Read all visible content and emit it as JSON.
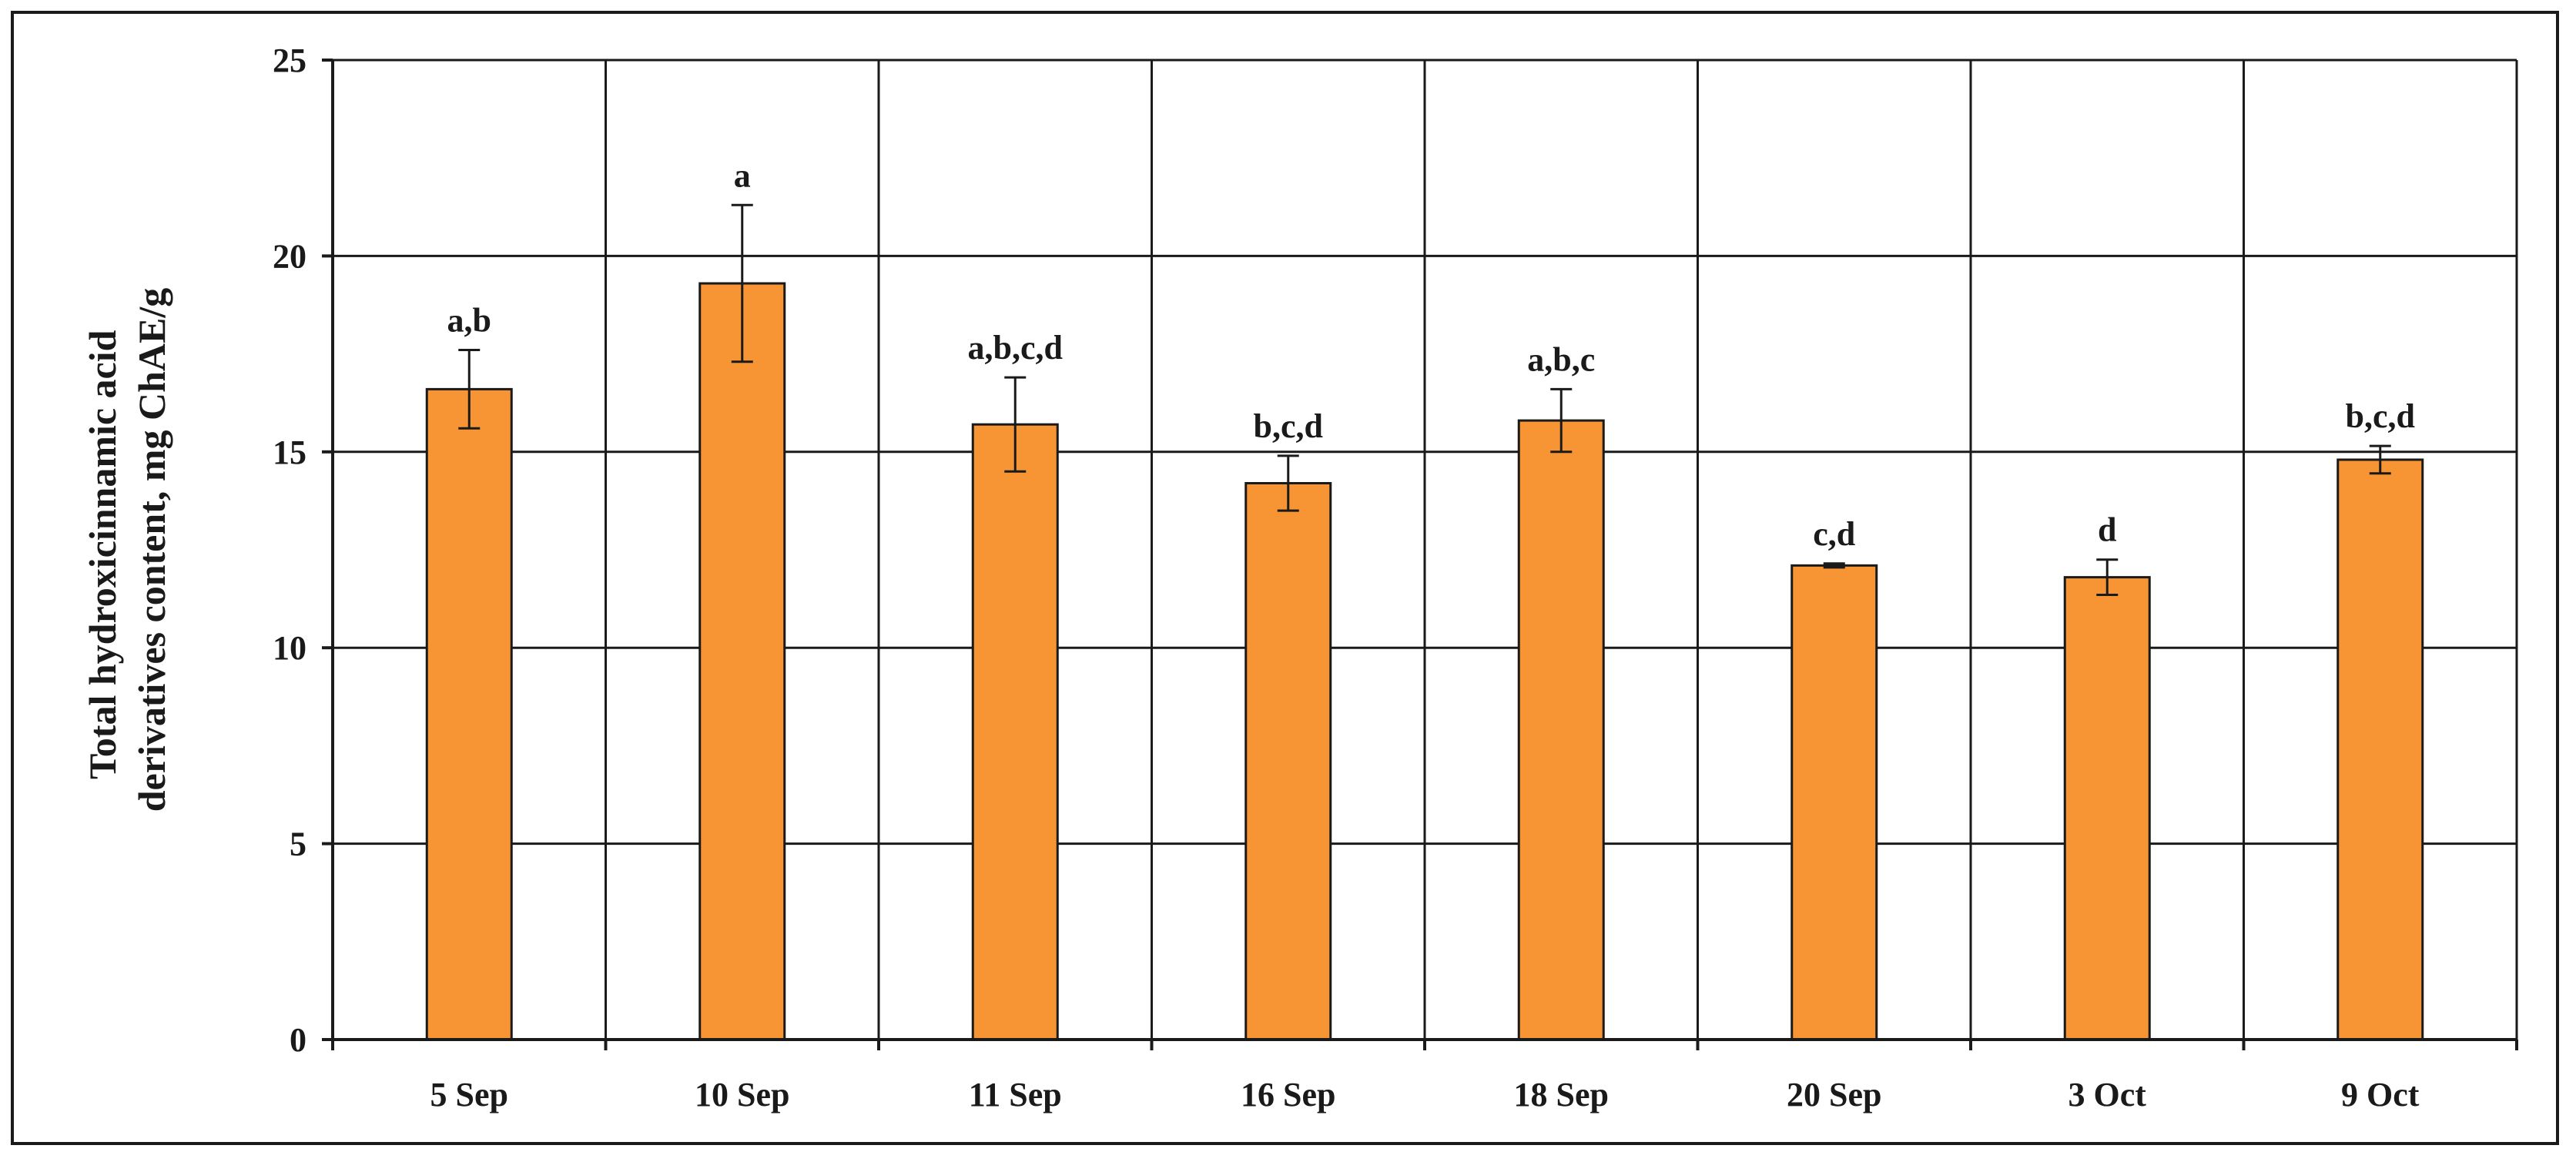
{
  "chart_data": {
    "type": "bar",
    "title": "",
    "xlabel": "",
    "ylabel_lines": [
      "Total hydroxicinnamic acid",
      "derivatives content, mg ChAE/g"
    ],
    "ylim": [
      0,
      25
    ],
    "yticks": [
      0,
      5,
      10,
      15,
      20,
      25
    ],
    "grid": true,
    "legend": "none",
    "categories": [
      "5 Sep",
      "10 Sep",
      "11 Sep",
      "16 Sep",
      "18 Sep",
      "20 Sep",
      "3 Oct",
      "9 Oct"
    ],
    "values": [
      16.6,
      19.3,
      15.7,
      14.2,
      15.8,
      12.1,
      11.8,
      14.8
    ],
    "error": [
      1.0,
      2.0,
      1.2,
      0.7,
      0.8,
      0.05,
      0.45,
      0.35
    ],
    "significance_labels": [
      "a,b",
      "a",
      "a,b,c,d",
      "b,c,d",
      "a,b,c",
      "c,d",
      "d",
      "b,c,d"
    ],
    "colors": {
      "bar_fill": "#F79433",
      "bar_stroke": "#1a1a1a",
      "grid": "#1a1a1a",
      "text": "#1a1a1a"
    }
  }
}
